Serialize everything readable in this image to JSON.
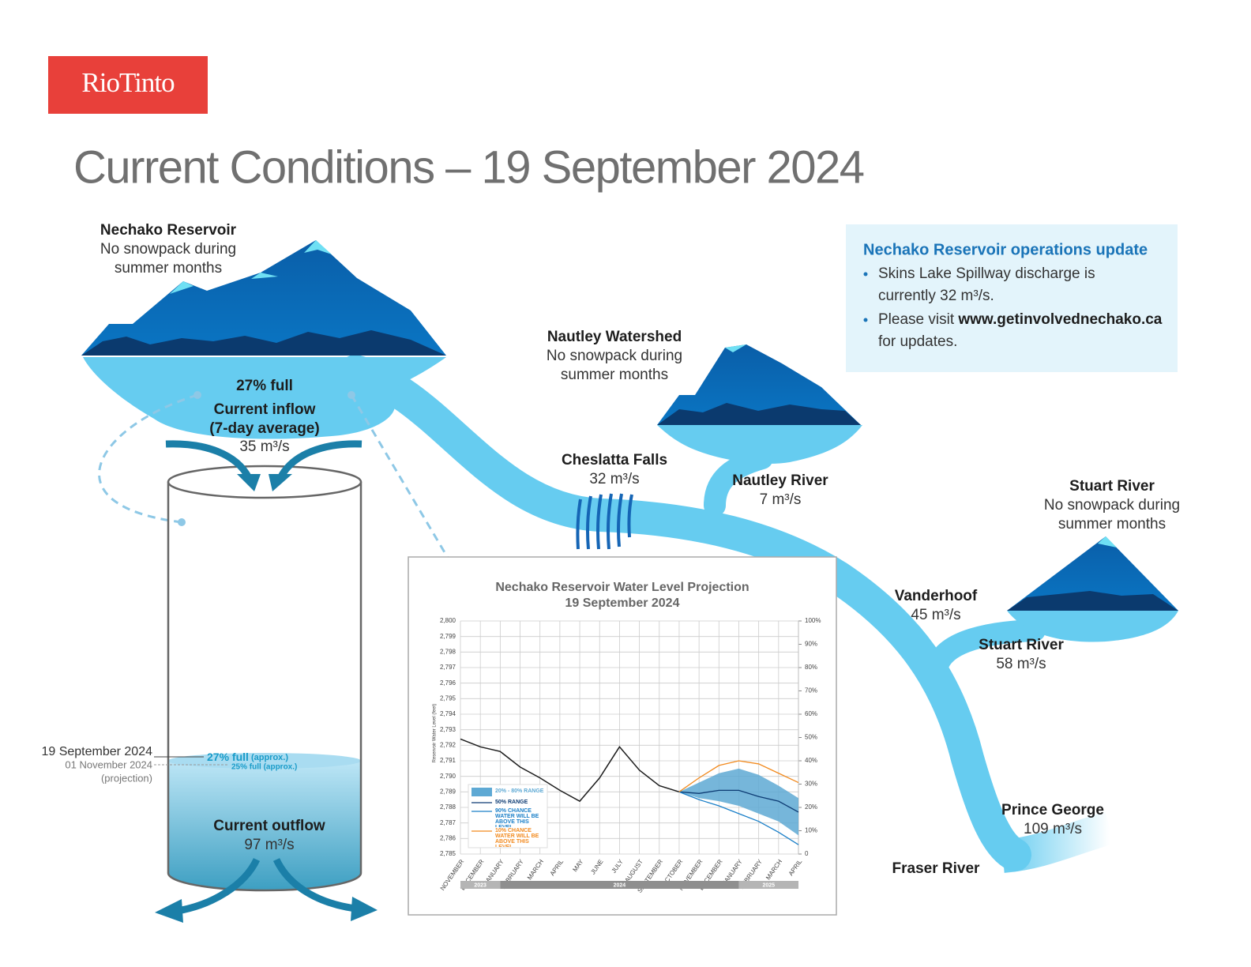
{
  "logo": "RioTinto",
  "title": "Current Conditions – 19 September 2024",
  "reservoir": {
    "name": "Nechako Reservoir",
    "note": [
      "No snowpack during",
      "summer months"
    ],
    "level": "27% full",
    "inflow_label": [
      "Current inflow",
      "(7-day average)"
    ],
    "inflow": "35 m³/s"
  },
  "nautley_watershed": {
    "name": "Nautley Watershed",
    "note": [
      "No snowpack during",
      "summer months"
    ]
  },
  "cheslatta_falls": {
    "name": "Cheslatta Falls",
    "flow": "32 m³/s"
  },
  "nautley_river": {
    "name": "Nautley River",
    "flow": "7 m³/s"
  },
  "stuart_watershed": {
    "name": "Stuart River",
    "note": [
      "No snowpack during",
      "summer months"
    ]
  },
  "vanderhoof": {
    "name": "Vanderhoof",
    "flow": "45 m³/s"
  },
  "stuart_river": {
    "name": "Stuart River",
    "flow": "58 m³/s"
  },
  "prince_george": {
    "name": "Prince George",
    "flow": "109 m³/s"
  },
  "fraser_river": "Fraser River",
  "update": {
    "title": "Nechako Reservoir operations update",
    "items": [
      {
        "lines": [
          "Skins Lake Spillway discharge is",
          "currently 32 m³/s."
        ]
      },
      {
        "lines": [
          "Please visit ",
          "for updates."
        ],
        "link": "www.getinvolvednechako.ca"
      }
    ]
  },
  "cylinder": {
    "current_date": "19 September 2024",
    "current_level": "27% full",
    "current_approx": " (approx.)",
    "projection_date": "01 November 2024",
    "projection_note": "(projection)",
    "projection_level": "25% full (approx.)",
    "outflow_label": "Current outflow",
    "outflow": "97 m³/s"
  },
  "chart_data": {
    "type": "line",
    "title": "Nechako Reservoir Water Level Projection",
    "subtitle": "19 September 2024",
    "y_label": "Reservoir Water Level (feet)",
    "categories": [
      "NOVEMBER",
      "DECEMBER",
      "JANUARY",
      "FEBRUARY",
      "MARCH",
      "APRIL",
      "MAY",
      "JUNE",
      "JULY",
      "AUGUST",
      "SEPTEMBER",
      "OCTOBER",
      "NOVEMBER",
      "DECEMBER",
      "JANUARY",
      "FEBRUARY",
      "MARCH",
      "APRIL"
    ],
    "years": [
      "2023",
      "2024",
      "2025"
    ],
    "ylim": [
      2785,
      2800
    ],
    "yticks": [
      {
        "value": 2785,
        "label": "2,785"
      },
      {
        "value": 2786,
        "label": "2,786"
      },
      {
        "value": 2787,
        "label": "2,787"
      },
      {
        "value": 2788,
        "label": "2,788"
      },
      {
        "value": 2789,
        "label": "2,789"
      },
      {
        "value": 2790,
        "label": "2,790"
      },
      {
        "value": 2791,
        "label": "2,791"
      },
      {
        "value": 2792,
        "label": "2,792"
      },
      {
        "value": 2793,
        "label": "2,793"
      },
      {
        "value": 2794,
        "label": "2,794"
      },
      {
        "value": 2795,
        "label": "2,795"
      },
      {
        "value": 2796,
        "label": "2,796"
      },
      {
        "value": 2797,
        "label": "2,797"
      },
      {
        "value": 2798,
        "label": "2,798"
      },
      {
        "value": 2799,
        "label": "2,799"
      },
      {
        "value": 2800,
        "label": "2,800"
      }
    ],
    "y2lim": [
      0,
      100
    ],
    "y2ticks": [
      0,
      {
        "value": 10,
        "label": "10%"
      },
      {
        "value": 20,
        "label": "20%"
      },
      {
        "value": 30,
        "label": "30%"
      },
      {
        "value": 40,
        "label": "40%"
      },
      {
        "value": 50,
        "label": "50%"
      },
      {
        "value": 60,
        "label": "60%"
      },
      {
        "value": 70,
        "label": "70%"
      },
      {
        "value": 80,
        "label": "80%"
      },
      {
        "value": 90,
        "label": "90%"
      },
      {
        "value": 100,
        "label": "100%"
      }
    ],
    "grid": true,
    "legend": "lower left",
    "band": {
      "name": "20% - 80% RANGE",
      "color": "#5ea9d4",
      "low": [
        null,
        null,
        null,
        null,
        null,
        null,
        null,
        null,
        null,
        null,
        null,
        2789.0,
        2788.6,
        2788.4,
        2788.1,
        2787.6,
        2787.1,
        2786.2
      ],
      "high": [
        null,
        null,
        null,
        null,
        null,
        null,
        null,
        null,
        null,
        null,
        null,
        2789.0,
        2789.6,
        2790.2,
        2790.5,
        2790.1,
        2789.4,
        2788.6
      ]
    },
    "series": [
      {
        "color": "#1d1d1d",
        "values": [
          2792.4,
          2791.9,
          2791.6,
          2790.6,
          2789.9,
          2789.1,
          2788.4,
          2789.9,
          2791.9,
          2790.4,
          2789.4,
          2789.0,
          null,
          null,
          null,
          null,
          null,
          null
        ]
      },
      {
        "name": "50% RANGE",
        "color": "#0d3b73",
        "values": [
          null,
          null,
          null,
          null,
          null,
          null,
          null,
          null,
          null,
          null,
          null,
          2789.0,
          2788.9,
          2789.1,
          2789.1,
          2788.7,
          2788.4,
          2787.7
        ]
      },
      {
        "name": "90% CHANCE WATER WILL BE ABOVE THIS LEVEL",
        "color": "#1a7fc8",
        "values": [
          null,
          null,
          null,
          null,
          null,
          null,
          null,
          null,
          null,
          null,
          null,
          2789.0,
          2788.5,
          2788.1,
          2787.6,
          2787.1,
          2786.4,
          2785.6
        ]
      },
      {
        "name": "10% CHANCE WATER WILL BE ABOVE THIS LEVEL",
        "color": "#f28a1e",
        "values": [
          null,
          null,
          null,
          null,
          null,
          null,
          null,
          null,
          null,
          null,
          null,
          2789.0,
          2789.9,
          2790.7,
          2791.0,
          2790.8,
          2790.2,
          2789.6
        ]
      }
    ]
  }
}
